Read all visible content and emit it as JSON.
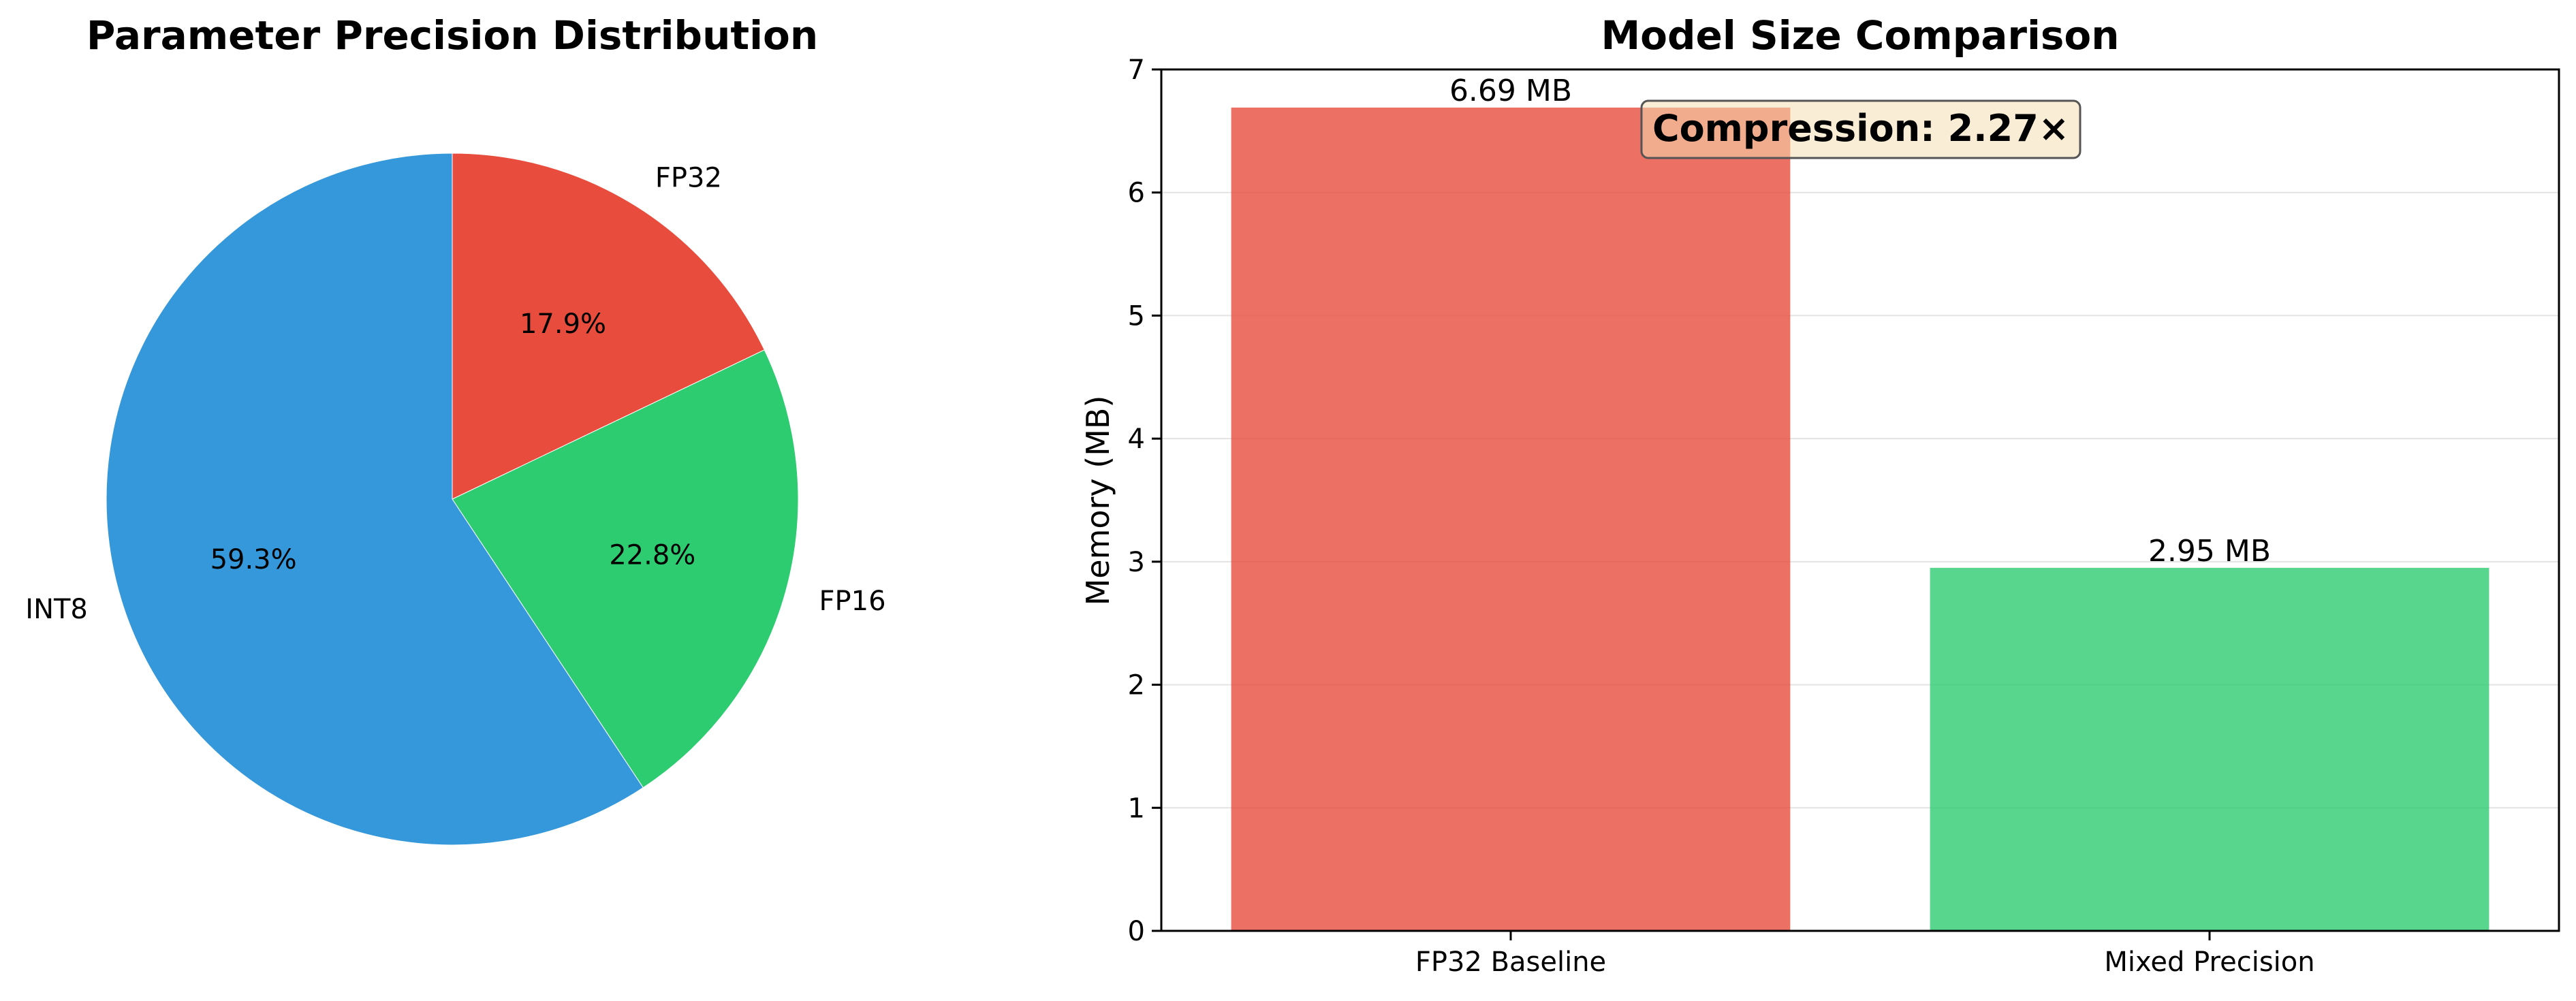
{
  "chart_data": [
    {
      "type": "pie",
      "title": "Parameter Precision Distribution",
      "slices": [
        {
          "label": "FP32",
          "value": 17.9,
          "pct_label": "17.9%",
          "color": "#e74c3c"
        },
        {
          "label": "FP16",
          "value": 22.8,
          "pct_label": "22.8%",
          "color": "#2ecc71"
        },
        {
          "label": "INT8",
          "value": 59.3,
          "pct_label": "59.3%",
          "color": "#3498db"
        }
      ],
      "start_angle_deg": 90,
      "direction": "clockwise"
    },
    {
      "type": "bar",
      "title": "Model Size Comparison",
      "xlabel": "",
      "ylabel": "Memory (MB)",
      "categories": [
        "FP32 Baseline",
        "Mixed Precision"
      ],
      "values": [
        6.69,
        2.95
      ],
      "value_labels": [
        "6.69 MB",
        "2.95 MB"
      ],
      "colors": [
        "#e74c3c",
        "#2ecc71"
      ],
      "ylim": [
        0,
        7
      ],
      "yticks": [
        "0",
        "1",
        "2",
        "3",
        "4",
        "5",
        "6",
        "7"
      ],
      "grid": "y",
      "annotation": {
        "text": "Compression: 2.27×",
        "bg_color": "#f5deb3"
      }
    }
  ]
}
